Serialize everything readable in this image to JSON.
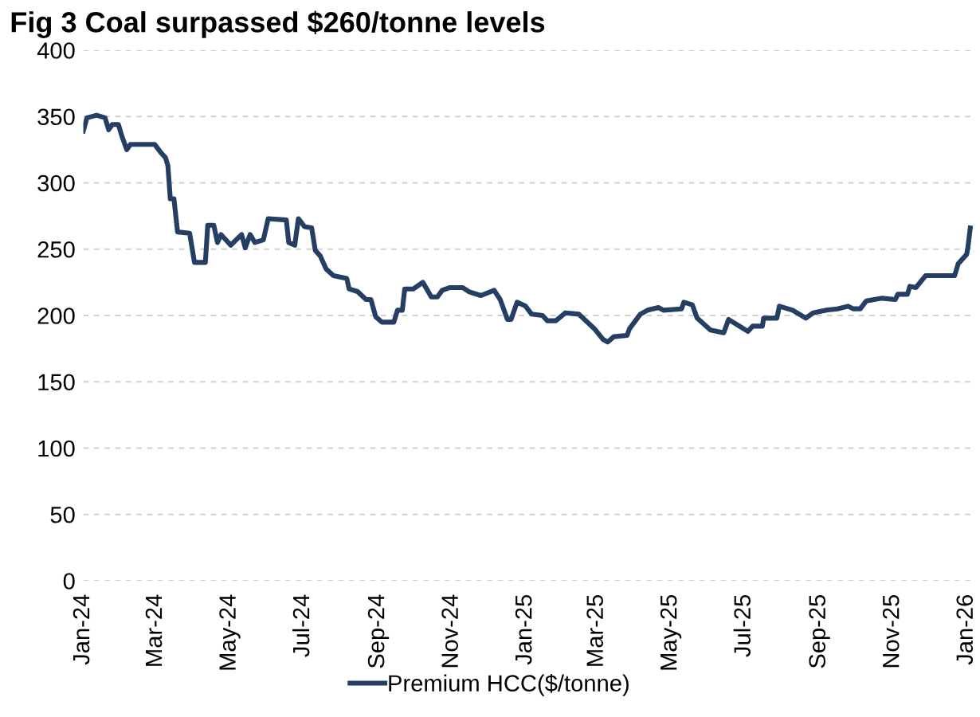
{
  "chart_data": {
    "type": "line",
    "title": "Fig 3 Coal surpassed $260/tonne levels",
    "x": [
      "2024-01-01",
      "2024-01-04",
      "2024-01-12",
      "2024-01-19",
      "2024-01-22",
      "2024-01-25",
      "2024-01-30",
      "2024-02-02",
      "2024-02-06",
      "2024-02-09",
      "2024-02-29",
      "2024-03-05",
      "2024-03-09",
      "2024-03-11",
      "2024-03-13",
      "2024-03-16",
      "2024-03-19",
      "2024-03-29",
      "2024-04-02",
      "2024-04-11",
      "2024-04-13",
      "2024-04-18",
      "2024-04-21",
      "2024-04-24",
      "2024-05-02",
      "2024-05-11",
      "2024-05-14",
      "2024-05-18",
      "2024-05-22",
      "2024-05-29",
      "2024-06-02",
      "2024-06-17",
      "2024-06-19",
      "2024-06-24",
      "2024-06-27",
      "2024-07-02",
      "2024-07-08",
      "2024-07-11",
      "2024-07-15",
      "2024-07-20",
      "2024-07-26",
      "2024-08-06",
      "2024-08-08",
      "2024-08-15",
      "2024-08-22",
      "2024-08-26",
      "2024-08-30",
      "2024-09-04",
      "2024-09-14",
      "2024-09-17",
      "2024-09-21",
      "2024-09-23",
      "2024-09-30",
      "2024-10-08",
      "2024-10-15",
      "2024-10-20",
      "2024-10-24",
      "2024-10-30",
      "2024-11-10",
      "2024-11-15",
      "2024-11-25",
      "2024-12-06",
      "2024-12-11",
      "2024-12-17",
      "2024-12-20",
      "2024-12-25",
      "2025-01-01",
      "2025-01-06",
      "2025-01-15",
      "2025-01-19",
      "2025-01-26",
      "2025-02-03",
      "2025-02-14",
      "2025-02-27",
      "2025-03-06",
      "2025-03-10",
      "2025-03-15",
      "2025-03-26",
      "2025-03-28",
      "2025-04-06",
      "2025-04-12",
      "2025-04-21",
      "2025-04-25",
      "2025-05-10",
      "2025-05-12",
      "2025-05-19",
      "2025-05-23",
      "2025-06-03",
      "2025-06-14",
      "2025-06-18",
      "2025-06-27",
      "2025-07-04",
      "2025-07-08",
      "2025-07-16",
      "2025-07-17",
      "2025-07-28",
      "2025-07-30",
      "2025-08-10",
      "2025-08-21",
      "2025-08-27",
      "2025-09-07",
      "2025-09-16",
      "2025-09-25",
      "2025-09-29",
      "2025-10-05",
      "2025-10-10",
      "2025-10-23",
      "2025-11-03",
      "2025-11-05",
      "2025-11-13",
      "2025-11-15",
      "2025-11-20",
      "2025-11-28",
      "2025-12-22",
      "2025-12-25",
      "2026-01-01",
      "2026-01-02",
      "2026-01-04"
    ],
    "series": [
      {
        "name": "Premium HCC($/tonne)",
        "color": "#243f63",
        "values": [
          339,
          349,
          351,
          349,
          340,
          344,
          344,
          335,
          325,
          329,
          329,
          323,
          319,
          313,
          288,
          288,
          263,
          262,
          240,
          240,
          268,
          268,
          255,
          261,
          253,
          261,
          251,
          261,
          255,
          257,
          273,
          272,
          255,
          253,
          273,
          267,
          266,
          249,
          245,
          235,
          230,
          228,
          220,
          218,
          212,
          212,
          199,
          195,
          195,
          204,
          204,
          220,
          220,
          225,
          214,
          214,
          219,
          221,
          221,
          218,
          215,
          219,
          212,
          197,
          197,
          210,
          207,
          201,
          200,
          196,
          196,
          202,
          201,
          190,
          182,
          180,
          184,
          185,
          190,
          201,
          204,
          206,
          204,
          205,
          210,
          208,
          198,
          189,
          187,
          197,
          192,
          188,
          192,
          192,
          198,
          198,
          207,
          204,
          198,
          202,
          204,
          205,
          207,
          205,
          205,
          211,
          213,
          212,
          216,
          216,
          222,
          221,
          230,
          230,
          239,
          246,
          251,
          266
        ]
      }
    ],
    "xlim": [
      "2024-01-01",
      "2026-01-08"
    ],
    "xticks": [
      {
        "value": "2024-01-01",
        "label": "Jan-24"
      },
      {
        "value": "2024-03-01",
        "label": "Mar-24"
      },
      {
        "value": "2024-05-01",
        "label": "May-24"
      },
      {
        "value": "2024-07-01",
        "label": "Jul-24"
      },
      {
        "value": "2024-09-01",
        "label": "Sep-24"
      },
      {
        "value": "2024-11-01",
        "label": "Nov-24"
      },
      {
        "value": "2025-01-01",
        "label": "Jan-25"
      },
      {
        "value": "2025-03-01",
        "label": "Mar-25"
      },
      {
        "value": "2025-05-01",
        "label": "May-25"
      },
      {
        "value": "2025-07-01",
        "label": "Jul-25"
      },
      {
        "value": "2025-09-01",
        "label": "Sep-25"
      },
      {
        "value": "2025-11-01",
        "label": "Nov-25"
      },
      {
        "value": "2026-01-01",
        "label": "Jan-26"
      }
    ],
    "ylim": [
      0,
      400
    ],
    "yticks": [
      0,
      50,
      100,
      150,
      200,
      250,
      300,
      350,
      400
    ],
    "grid": "y",
    "legend": "bottom",
    "marker": "none",
    "line_style": "solid"
  }
}
